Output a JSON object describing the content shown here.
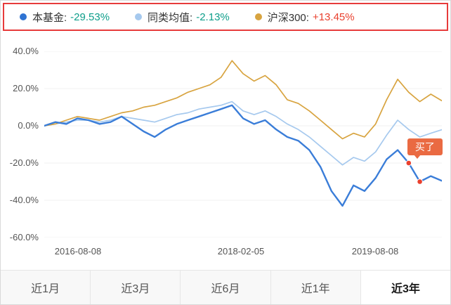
{
  "legend": {
    "highlight_border_color": "#e73b3b",
    "items": [
      {
        "label": "本基金:",
        "value": "-29.53%",
        "dot_color": "#2f73d2",
        "value_color": "#0d9e8a"
      },
      {
        "label": "同类均值:",
        "value": "-2.13%",
        "dot_color": "#a6c9ee",
        "value_color": "#0d9e8a"
      },
      {
        "label": "沪深300:",
        "value": "+13.45%",
        "dot_color": "#d8a440",
        "value_color": "#e9402e"
      }
    ]
  },
  "chart_data": {
    "type": "line",
    "title": "",
    "xlabel": "",
    "ylabel": "",
    "ylim": [
      -60,
      40
    ],
    "grid": false,
    "legend_position": "top",
    "y_ticks": [
      40,
      20,
      0,
      -20,
      -40,
      -60
    ],
    "y_tick_labels": [
      "40.0%",
      "20.0%",
      "0.0%",
      "-20.0%",
      "-40.0%",
      "-60.0%"
    ],
    "x_tick_labels": [
      "2016-08-08",
      "2018-02-05",
      "2019-08-08"
    ],
    "x_range": [
      "2016-08-08",
      "2019-08-08"
    ],
    "x_unit": "month",
    "series": [
      {
        "name": "本基金",
        "color": "#3a7dd8",
        "line_width": 2.4,
        "final_value": "-29.53%",
        "values": [
          0,
          2,
          1,
          4,
          3,
          1,
          2,
          5,
          1,
          -3,
          -6,
          -2,
          1,
          3,
          5,
          7,
          9,
          11,
          4,
          1,
          3,
          -2,
          -6,
          -8,
          -13,
          -22,
          -35,
          -43,
          -32,
          -35,
          -28,
          -18,
          -13,
          -20,
          -30,
          -27,
          -29.53
        ]
      },
      {
        "name": "同类均值",
        "color": "#a6c9ee",
        "line_width": 1.7,
        "final_value": "-2.13%",
        "values": [
          0,
          1,
          2,
          3,
          3,
          2,
          3,
          5,
          4,
          3,
          2,
          4,
          6,
          7,
          9,
          10,
          11,
          13,
          8,
          6,
          8,
          5,
          1,
          -2,
          -6,
          -11,
          -16,
          -21,
          -17,
          -19,
          -14,
          -5,
          3,
          -2,
          -6,
          -4,
          -2.13
        ]
      },
      {
        "name": "沪深300",
        "color": "#d8a440",
        "line_width": 1.7,
        "final_value": "+13.45%",
        "values": [
          0,
          1,
          3,
          5,
          4,
          3,
          5,
          7,
          8,
          10,
          11,
          13,
          15,
          18,
          20,
          22,
          26,
          35,
          28,
          24,
          27,
          22,
          14,
          12,
          8,
          3,
          -2,
          -7,
          -4,
          -6,
          1,
          14,
          25,
          18,
          13,
          17,
          13.45
        ]
      }
    ],
    "markers": [
      {
        "series_index": 0,
        "point_index": 33,
        "label": "买了",
        "dot_color": "#e9402e",
        "tooltip_bg": "#ea6a42"
      },
      {
        "series_index": 0,
        "point_index": 34,
        "label": "",
        "dot_color": "#e9402e"
      }
    ]
  },
  "tabs": {
    "items": [
      {
        "label": "近1月",
        "selected": false
      },
      {
        "label": "近3月",
        "selected": false
      },
      {
        "label": "近6月",
        "selected": false
      },
      {
        "label": "近1年",
        "selected": false
      },
      {
        "label": "近3年",
        "selected": true
      }
    ]
  }
}
